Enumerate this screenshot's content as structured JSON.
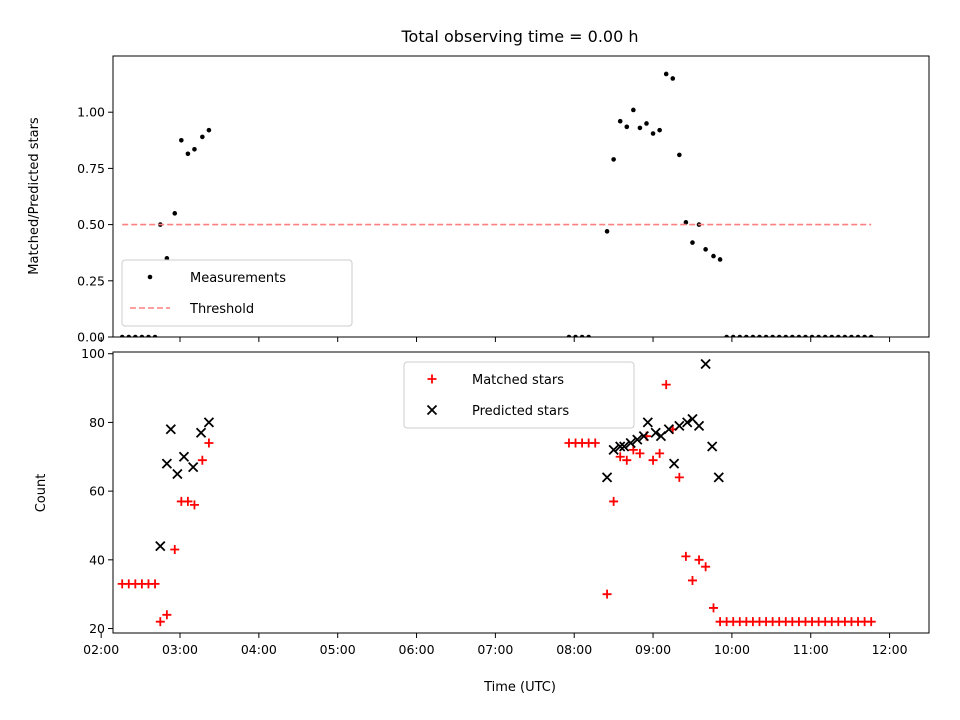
{
  "chart_data": [
    {
      "type": "scatter",
      "title": "Total observing time = 0.00 h",
      "xlabel": "",
      "ylabel": "Matched/Predicted stars",
      "xlim": [
        "02:09",
        "12:30"
      ],
      "ylim": [
        0,
        1.25
      ],
      "x_ticks": [
        "02:00",
        "03:00",
        "04:00",
        "05:00",
        "06:00",
        "07:00",
        "08:00",
        "09:00",
        "10:00",
        "11:00",
        "12:00"
      ],
      "y_ticks": [
        "0.00",
        "0.25",
        "0.50",
        "0.75",
        "1.00"
      ],
      "legend_position": "lower-left",
      "series": [
        {
          "name": "Measurements",
          "marker": "dot",
          "color": "#000000",
          "x": [
            "02:16",
            "02:21",
            "02:26",
            "02:31",
            "02:36",
            "02:41",
            "02:45",
            "02:50",
            "02:56",
            "03:01",
            "03:06",
            "03:11",
            "03:17",
            "03:22",
            "07:56",
            "08:01",
            "08:06",
            "08:11",
            "08:25",
            "08:30",
            "08:35",
            "08:40",
            "08:45",
            "08:50",
            "08:55",
            "09:00",
            "09:05",
            "09:10",
            "09:15",
            "09:20",
            "09:25",
            "09:30",
            "09:35",
            "09:40",
            "09:46",
            "09:51",
            "09:56",
            "10:01",
            "10:06",
            "10:11",
            "10:16",
            "10:21",
            "10:26",
            "10:31",
            "10:36",
            "10:41",
            "10:46",
            "10:51",
            "10:56",
            "11:01",
            "11:06",
            "11:11",
            "11:16",
            "11:21",
            "11:26",
            "11:31",
            "11:36",
            "11:41",
            "11:46"
          ],
          "y": [
            0,
            0,
            0,
            0,
            0,
            0,
            0.5,
            0.35,
            0.55,
            0.875,
            0.815,
            0.835,
            0.89,
            0.92,
            0,
            0,
            0,
            0,
            0.47,
            0.79,
            0.96,
            0.935,
            1.01,
            0.93,
            0.95,
            0.905,
            0.92,
            1.17,
            1.15,
            0.81,
            0.51,
            0.42,
            0.5,
            0.39,
            0.36,
            0.345,
            0,
            0,
            0,
            0,
            0,
            0,
            0,
            0,
            0,
            0,
            0,
            0,
            0,
            0,
            0,
            0,
            0,
            0,
            0,
            0,
            0,
            0,
            0
          ]
        },
        {
          "name": "Threshold",
          "line_style": "dashed",
          "color": "#ff8080",
          "x": [
            "02:16",
            "11:46"
          ],
          "y": [
            0.5,
            0.5
          ]
        }
      ]
    },
    {
      "type": "scatter",
      "title": "",
      "xlabel": "Time (UTC)",
      "ylabel": "Count",
      "xlim": [
        "02:09",
        "12:30"
      ],
      "ylim": [
        18.7,
        100.5
      ],
      "x_ticks": [
        "02:00",
        "03:00",
        "04:00",
        "05:00",
        "06:00",
        "07:00",
        "08:00",
        "09:00",
        "10:00",
        "11:00",
        "12:00"
      ],
      "y_ticks": [
        "20",
        "40",
        "60",
        "80",
        "100"
      ],
      "legend_position": "upper-center",
      "series": [
        {
          "name": "Matched stars",
          "marker": "plus",
          "color": "#ff0000",
          "x": [
            "02:16",
            "02:21",
            "02:26",
            "02:31",
            "02:36",
            "02:41",
            "02:45",
            "02:50",
            "02:56",
            "03:01",
            "03:06",
            "03:11",
            "03:17",
            "03:22",
            "07:56",
            "08:01",
            "08:06",
            "08:11",
            "08:16",
            "08:25",
            "08:30",
            "08:35",
            "08:40",
            "08:45",
            "08:50",
            "08:55",
            "09:00",
            "09:05",
            "09:10",
            "09:15",
            "09:20",
            "09:25",
            "09:30",
            "09:35",
            "09:40",
            "09:46",
            "09:51",
            "09:56",
            "10:01",
            "10:06",
            "10:11",
            "10:16",
            "10:21",
            "10:26",
            "10:31",
            "10:36",
            "10:41",
            "10:46",
            "10:51",
            "10:56",
            "11:01",
            "11:06",
            "11:11",
            "11:16",
            "11:21",
            "11:26",
            "11:31",
            "11:36",
            "11:41",
            "11:46"
          ],
          "y": [
            33,
            33,
            33,
            33,
            33,
            33,
            22,
            24,
            43,
            57,
            57,
            56,
            69,
            74,
            74,
            74,
            74,
            74,
            74,
            30,
            57,
            70,
            69,
            72,
            71,
            76,
            69,
            71,
            91,
            78,
            64,
            41,
            34,
            40,
            38,
            26,
            22,
            22,
            22,
            22,
            22,
            22,
            22,
            22,
            22,
            22,
            22,
            22,
            22,
            22,
            22,
            22,
            22,
            22,
            22,
            22,
            22,
            22,
            22,
            22
          ]
        },
        {
          "name": "Predicted stars",
          "marker": "x",
          "color": "#000000",
          "x": [
            "02:45",
            "02:50",
            "02:53",
            "02:58",
            "03:03",
            "03:10",
            "03:16",
            "03:22",
            "08:25",
            "08:30",
            "08:35",
            "08:38",
            "08:43",
            "08:48",
            "08:53",
            "08:56",
            "09:02",
            "09:06",
            "09:12",
            "09:16",
            "09:20",
            "09:26",
            "09:30",
            "09:35",
            "09:40",
            "09:45",
            "09:50"
          ],
          "y": [
            44,
            68,
            78,
            65,
            70,
            67,
            77,
            80,
            64,
            72,
            73,
            73,
            74,
            75,
            76,
            80,
            77,
            76,
            78,
            68,
            79,
            80,
            81,
            79,
            97,
            73,
            64
          ]
        }
      ]
    }
  ]
}
